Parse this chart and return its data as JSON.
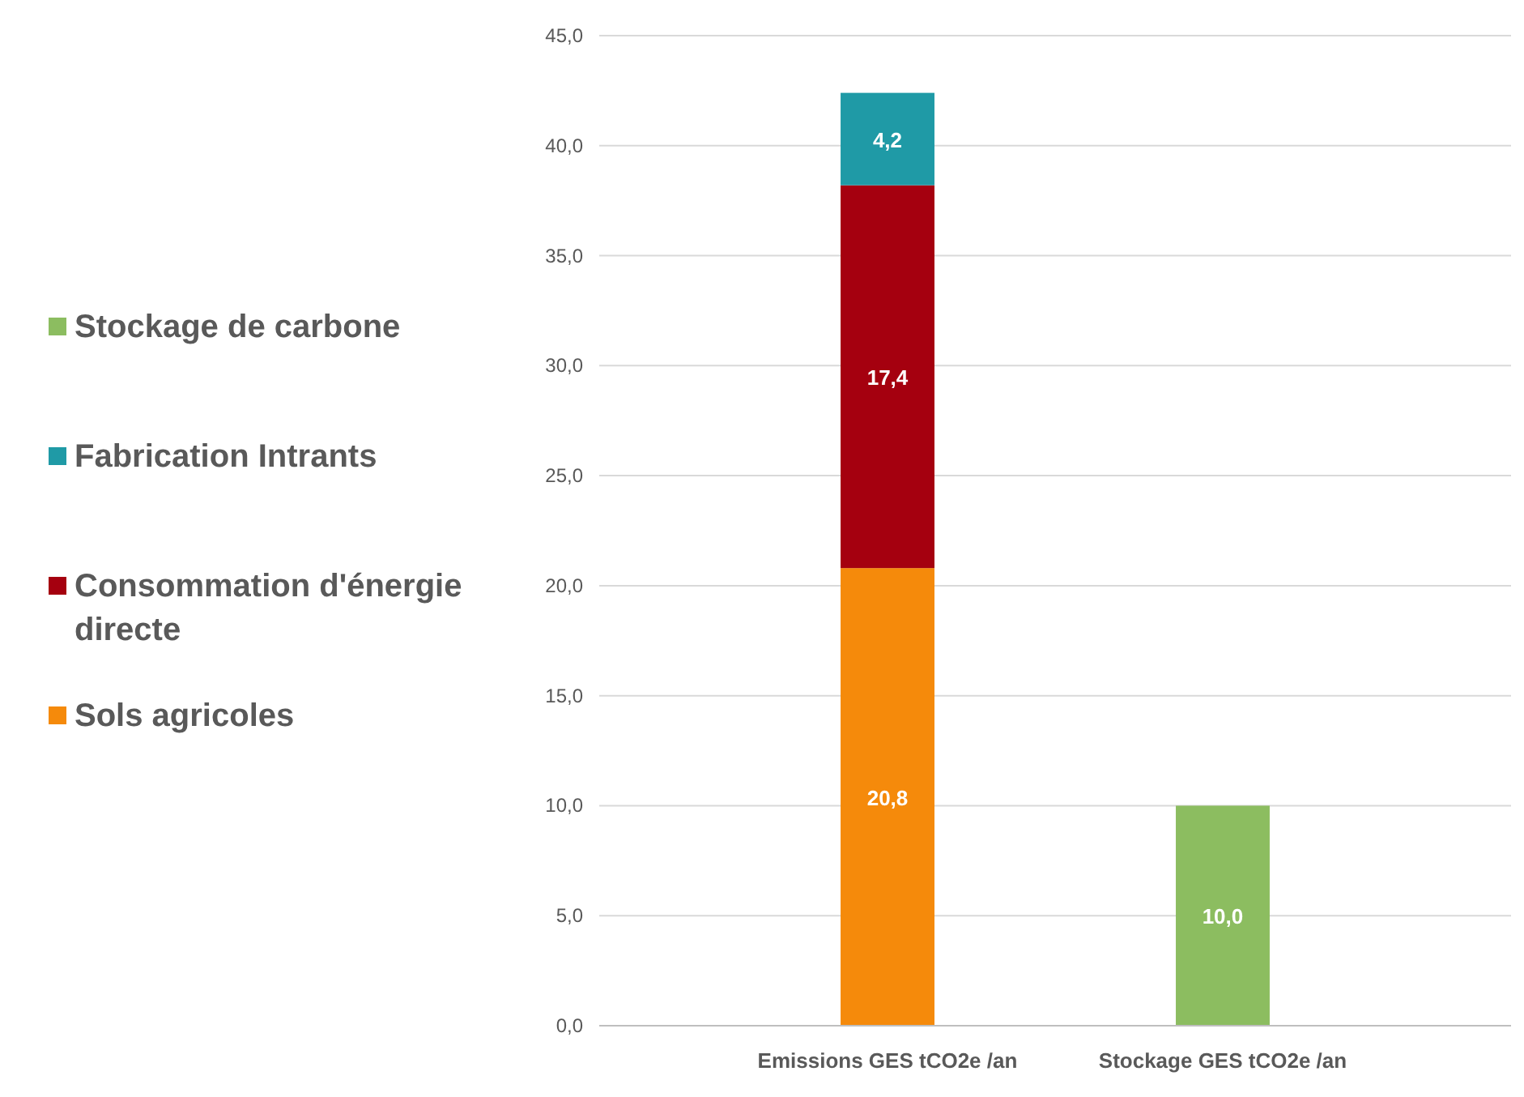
{
  "chart_data": {
    "type": "bar",
    "stacked": true,
    "categories": [
      "Emissions GES tCO2e /an",
      "Stockage GES tCO2e /an"
    ],
    "series": [
      {
        "name": "Sols agricoles",
        "color": "#f58a0b",
        "values": [
          20.8,
          null
        ],
        "value_labels": [
          "20,8",
          null
        ]
      },
      {
        "name": "Consommation d'énergie directe",
        "color": "#a5000f",
        "values": [
          17.4,
          null
        ],
        "value_labels": [
          "17,4",
          null
        ]
      },
      {
        "name": "Fabrication Intrants",
        "color": "#1f9aa6",
        "values": [
          4.2,
          null
        ],
        "value_labels": [
          "4,2",
          null
        ]
      },
      {
        "name": "Stockage de carbone",
        "color": "#8cbd60",
        "values": [
          null,
          10.0
        ],
        "value_labels": [
          null,
          "10,0"
        ]
      }
    ],
    "ylim": [
      0,
      45
    ],
    "yticks": [
      {
        "value": 0,
        "label": "0,0"
      },
      {
        "value": 5,
        "label": "5,0"
      },
      {
        "value": 10,
        "label": "10,0"
      },
      {
        "value": 15,
        "label": "15,0"
      },
      {
        "value": 20,
        "label": "20,0"
      },
      {
        "value": 25,
        "label": "25,0"
      },
      {
        "value": 30,
        "label": "30,0"
      },
      {
        "value": 35,
        "label": "35,0"
      },
      {
        "value": 40,
        "label": "40,0"
      },
      {
        "value": 45,
        "label": "45,0"
      }
    ],
    "grid": "y",
    "legend": "left"
  }
}
